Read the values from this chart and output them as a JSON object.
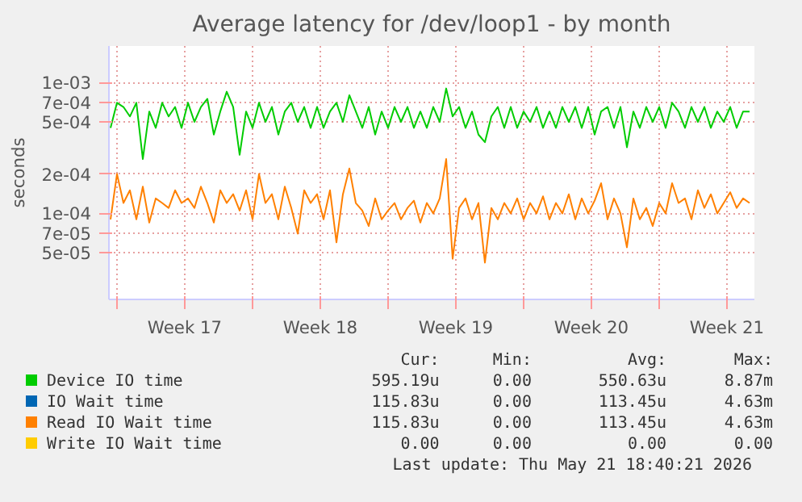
{
  "chart_data": {
    "type": "line",
    "title": "Average latency for /dev/loop1 - by month",
    "ylabel": "seconds",
    "log": "y",
    "grid": true,
    "legend": "bottom",
    "ylim": [
      2.2e-05,
      0.0019
    ],
    "yticks": [
      {
        "value": 5e-05,
        "label": "5e-05"
      },
      {
        "value": 7e-05,
        "label": "7e-05"
      },
      {
        "value": 0.0001,
        "label": "1e-04"
      },
      {
        "value": 0.0002,
        "label": "2e-04"
      },
      {
        "value": 0.0005,
        "label": "5e-04"
      },
      {
        "value": 0.0007,
        "label": "7e-04"
      },
      {
        "value": 0.001,
        "label": "1e-03"
      }
    ],
    "xlim": [
      "2026-04-18T14:00",
      "2026-05-21T22:00"
    ],
    "xticks": [
      {
        "value": "2026-04-19T00:00",
        "label": null
      },
      {
        "value": "2026-04-22T12:00",
        "label": "Week 17"
      },
      {
        "value": "2026-04-26T00:00",
        "label": null
      },
      {
        "value": "2026-04-29T12:00",
        "label": "Week 18"
      },
      {
        "value": "2026-05-03T00:00",
        "label": null
      },
      {
        "value": "2026-05-06T12:00",
        "label": "Week 19"
      },
      {
        "value": "2026-05-10T00:00",
        "label": null
      },
      {
        "value": "2026-05-13T12:00",
        "label": "Week 20"
      },
      {
        "value": "2026-05-17T00:00",
        "label": null
      },
      {
        "value": "2026-05-20T12:00",
        "label": "Week 21"
      }
    ],
    "x": [
      "2026-04-18T16:00",
      "2026-04-19T00:00",
      "2026-04-19T08:00",
      "2026-04-19T16:00",
      "2026-04-20T00:00",
      "2026-04-20T08:00",
      "2026-04-20T16:00",
      "2026-04-21T00:00",
      "2026-04-21T08:00",
      "2026-04-21T16:00",
      "2026-04-22T00:00",
      "2026-04-22T08:00",
      "2026-04-22T16:00",
      "2026-04-23T00:00",
      "2026-04-23T08:00",
      "2026-04-23T16:00",
      "2026-04-24T00:00",
      "2026-04-24T08:00",
      "2026-04-24T16:00",
      "2026-04-25T00:00",
      "2026-04-25T08:00",
      "2026-04-25T16:00",
      "2026-04-26T00:00",
      "2026-04-26T08:00",
      "2026-04-26T16:00",
      "2026-04-27T00:00",
      "2026-04-27T08:00",
      "2026-04-27T16:00",
      "2026-04-28T00:00",
      "2026-04-28T08:00",
      "2026-04-28T16:00",
      "2026-04-29T00:00",
      "2026-04-29T08:00",
      "2026-04-29T16:00",
      "2026-04-30T00:00",
      "2026-04-30T08:00",
      "2026-04-30T16:00",
      "2026-05-01T00:00",
      "2026-05-01T08:00",
      "2026-05-01T16:00",
      "2026-05-02T00:00",
      "2026-05-02T08:00",
      "2026-05-02T16:00",
      "2026-05-03T00:00",
      "2026-05-03T08:00",
      "2026-05-03T16:00",
      "2026-05-04T00:00",
      "2026-05-04T08:00",
      "2026-05-04T16:00",
      "2026-05-05T00:00",
      "2026-05-05T08:00",
      "2026-05-05T16:00",
      "2026-05-06T00:00",
      "2026-05-06T08:00",
      "2026-05-06T16:00",
      "2026-05-07T00:00",
      "2026-05-07T08:00",
      "2026-05-07T16:00",
      "2026-05-08T00:00",
      "2026-05-08T08:00",
      "2026-05-08T16:00",
      "2026-05-09T00:00",
      "2026-05-09T08:00",
      "2026-05-09T16:00",
      "2026-05-10T00:00",
      "2026-05-10T08:00",
      "2026-05-10T16:00",
      "2026-05-11T00:00",
      "2026-05-11T08:00",
      "2026-05-11T16:00",
      "2026-05-12T00:00",
      "2026-05-12T08:00",
      "2026-05-12T16:00",
      "2026-05-13T00:00",
      "2026-05-13T08:00",
      "2026-05-13T16:00",
      "2026-05-14T00:00",
      "2026-05-14T08:00",
      "2026-05-14T16:00",
      "2026-05-15T00:00",
      "2026-05-15T08:00",
      "2026-05-15T16:00",
      "2026-05-16T00:00",
      "2026-05-16T08:00",
      "2026-05-16T16:00",
      "2026-05-17T00:00",
      "2026-05-17T08:00",
      "2026-05-17T16:00",
      "2026-05-18T00:00",
      "2026-05-18T08:00",
      "2026-05-18T16:00",
      "2026-05-19T00:00",
      "2026-05-19T08:00",
      "2026-05-19T16:00",
      "2026-05-20T00:00",
      "2026-05-20T08:00",
      "2026-05-20T16:00",
      "2026-05-21T00:00",
      "2026-05-21T08:00",
      "2026-05-21T16:00"
    ],
    "series": [
      {
        "name": "Device IO time",
        "color": "#00cc00",
        "values": [
          0.00045,
          0.0007,
          0.00065,
          0.00055,
          0.0007,
          0.00026,
          0.0006,
          0.00045,
          0.0007,
          0.00055,
          0.00065,
          0.00045,
          0.0007,
          0.0005,
          0.00065,
          0.00075,
          0.0004,
          0.0006,
          0.00085,
          0.00065,
          0.00028,
          0.0006,
          0.00045,
          0.0007,
          0.0005,
          0.00065,
          0.0004,
          0.0006,
          0.0007,
          0.0005,
          0.00065,
          0.00045,
          0.00065,
          0.00045,
          0.0006,
          0.0007,
          0.0005,
          0.0008,
          0.0006,
          0.00045,
          0.00065,
          0.0004,
          0.0006,
          0.00045,
          0.00065,
          0.0005,
          0.00065,
          0.00045,
          0.0006,
          0.00045,
          0.00065,
          0.0005,
          0.0009,
          0.00055,
          0.00065,
          0.00045,
          0.0006,
          0.0004,
          0.00035,
          0.00055,
          0.00065,
          0.00045,
          0.00065,
          0.00045,
          0.0006,
          0.0005,
          0.00065,
          0.00045,
          0.0006,
          0.00045,
          0.00065,
          0.0005,
          0.00065,
          0.00045,
          0.00065,
          0.0004,
          0.0006,
          0.00065,
          0.00045,
          0.00065,
          0.00032,
          0.0006,
          0.00045,
          0.00065,
          0.0005,
          0.00065,
          0.00045,
          0.0007,
          0.0006,
          0.00045,
          0.00065,
          0.0005,
          0.00065,
          0.00045,
          0.0006,
          0.0005,
          0.00065,
          0.00045,
          0.0006,
          0.0006
        ]
      },
      {
        "name": "IO Wait time",
        "color": "#0066b3",
        "values": [
          null,
          null,
          null,
          null,
          null,
          null,
          null,
          null,
          null,
          null,
          null,
          null,
          null,
          null,
          null,
          null,
          null,
          null,
          null,
          null,
          null,
          null,
          null,
          null,
          null,
          null,
          null,
          null,
          null,
          null,
          null,
          null,
          null,
          null,
          null,
          null,
          null,
          null,
          null,
          null,
          null,
          null,
          null,
          null,
          null,
          null,
          null,
          null,
          null,
          null,
          null,
          null,
          null,
          null,
          null,
          null,
          null,
          null,
          null,
          null,
          null,
          null,
          null,
          null,
          null,
          null,
          null,
          null,
          null,
          null,
          null,
          null,
          null,
          null,
          null,
          null,
          null,
          null,
          null,
          null,
          null,
          null,
          null,
          null,
          null,
          null,
          null,
          null,
          null,
          null,
          null,
          null,
          null,
          null,
          null,
          null,
          null,
          null,
          null,
          null
        ]
      },
      {
        "name": "Read IO Wait time",
        "color": "#ff8000",
        "values": [
          9e-05,
          0.0002,
          0.00012,
          0.00015,
          9e-05,
          0.00016,
          8.5e-05,
          0.00013,
          0.00012,
          0.00011,
          0.00015,
          0.00012,
          0.00013,
          0.00011,
          0.00016,
          0.00012,
          8.5e-05,
          0.00015,
          0.00012,
          0.00014,
          0.000105,
          0.00015,
          9e-05,
          0.0002,
          0.00012,
          0.00014,
          9e-05,
          0.00016,
          0.00011,
          7e-05,
          0.00015,
          0.00012,
          0.00014,
          9e-05,
          0.00015,
          6e-05,
          0.00014,
          0.00022,
          0.00012,
          0.000105,
          8e-05,
          0.00013,
          9e-05,
          0.000105,
          0.00012,
          9e-05,
          0.00011,
          0.000125,
          8.5e-05,
          0.00012,
          0.0001,
          0.00013,
          0.00026,
          4.5e-05,
          0.00011,
          0.00013,
          9e-05,
          0.00012,
          4.2e-05,
          0.00011,
          9e-05,
          0.00012,
          0.0001,
          0.00013,
          9e-05,
          0.00012,
          0.0001,
          0.000135,
          9e-05,
          0.00012,
          0.0001,
          0.00014,
          9e-05,
          0.00013,
          0.0001,
          0.000125,
          0.00017,
          9e-05,
          0.00013,
          0.0001,
          5.5e-05,
          0.00013,
          9e-05,
          0.00011,
          8e-05,
          0.00012,
          0.0001,
          0.00017,
          0.00012,
          0.00013,
          9e-05,
          0.00015,
          0.00011,
          0.00014,
          0.0001,
          0.00012,
          0.000145,
          0.00011,
          0.00013,
          0.00012
        ]
      },
      {
        "name": "Write IO Wait time",
        "color": "#ffcc00",
        "values": [
          null,
          null,
          null,
          null,
          null,
          null,
          null,
          null,
          null,
          null,
          null,
          null,
          null,
          null,
          null,
          null,
          null,
          null,
          null,
          null,
          null,
          null,
          null,
          null,
          null,
          null,
          null,
          null,
          null,
          null,
          null,
          null,
          null,
          null,
          null,
          null,
          null,
          null,
          null,
          null,
          null,
          null,
          null,
          null,
          null,
          null,
          null,
          null,
          null,
          null,
          null,
          null,
          null,
          null,
          null,
          null,
          null,
          null,
          null,
          null,
          null,
          null,
          null,
          null,
          null,
          null,
          null,
          null,
          null,
          null,
          null,
          null,
          null,
          null,
          null,
          null,
          null,
          null,
          null,
          null,
          null,
          null,
          null,
          null,
          null,
          null,
          null,
          null,
          null,
          null,
          null,
          null,
          null,
          null,
          null,
          null,
          null,
          null,
          null,
          null
        ]
      }
    ],
    "annotations": [
      "Cur:",
      "Min:",
      "Avg:",
      "Max:",
      "595.19u",
      "0.00",
      "550.63u",
      "8.87m",
      "115.83u",
      "0.00",
      "113.45u",
      "4.63m",
      "115.83u",
      "0.00",
      "113.45u",
      "4.63m",
      "0.00",
      "0.00",
      "0.00",
      "0.00",
      "Last update: Thu May 21 18:40:21 2026"
    ]
  }
}
